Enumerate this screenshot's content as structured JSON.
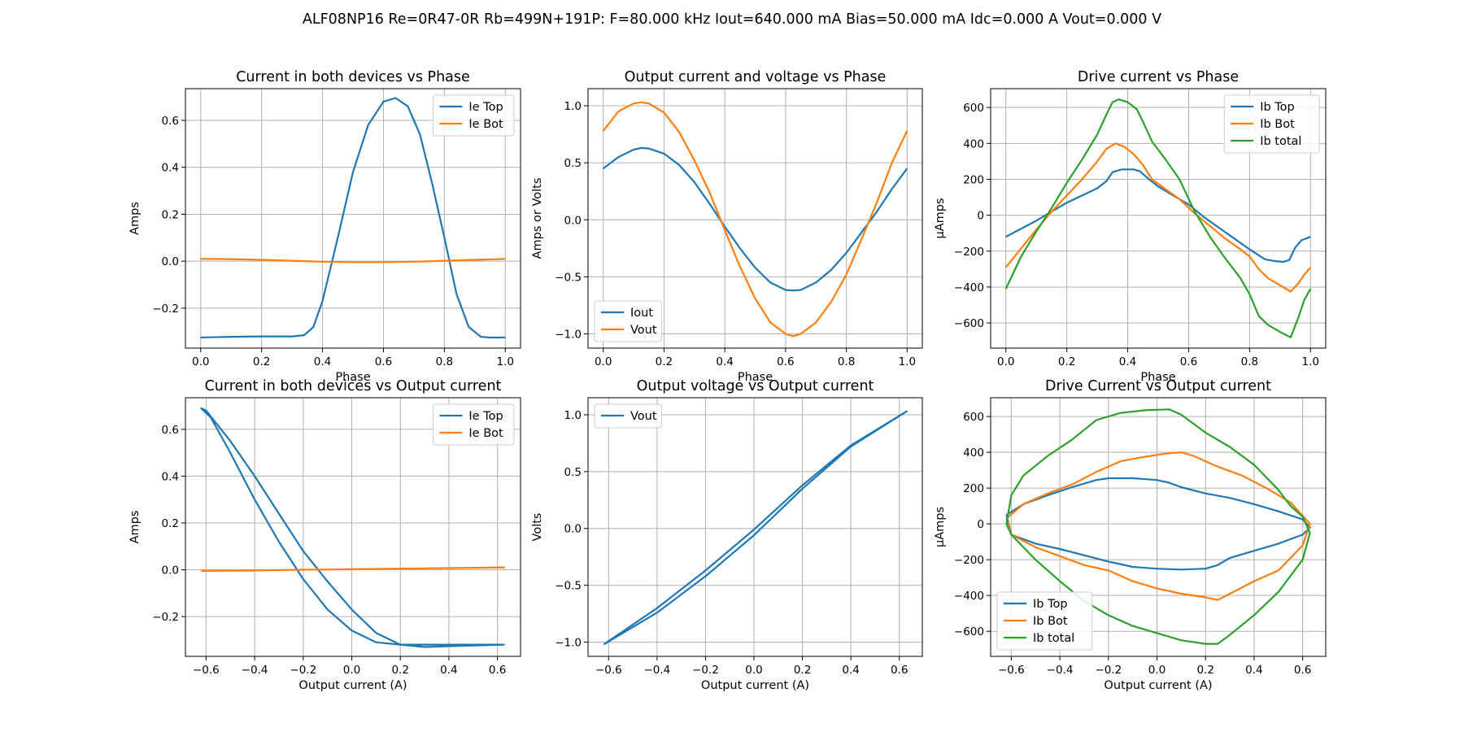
{
  "suptitle": "ALF08NP16 Re=0R47-0R Rb=499N+191P: F=80.000 kHz Iout=640.000 mA Bias=50.000 mA Idc=0.000 A Vout=0.000 V",
  "colors": {
    "c0": "#1f77b4",
    "c1": "#ff7f0e",
    "c2": "#2ca02c",
    "grid": "#b0b0b0"
  },
  "chart_data": [
    {
      "type": "line",
      "title": "Current in both devices vs Phase",
      "xlabel": "Phase",
      "ylabel": "Amps",
      "xlim": [
        -0.05,
        1.05
      ],
      "ylim": [
        -0.37,
        0.735
      ],
      "xticks": [
        0.0,
        0.2,
        0.4,
        0.6,
        0.8,
        1.0
      ],
      "xticklabels": [
        "0.0",
        "0.2",
        "0.4",
        "0.6",
        "0.8",
        "1.0"
      ],
      "yticks": [
        -0.2,
        0.0,
        0.2,
        0.4,
        0.6
      ],
      "yticklabels": [
        "−0.2",
        "0.0",
        "0.2",
        "0.4",
        "0.6"
      ],
      "grid": true,
      "legend": "upper right",
      "series": [
        {
          "name": "Ie Top",
          "color": "#1f77b4",
          "x": [
            0,
            0.1,
            0.2,
            0.3,
            0.34,
            0.37,
            0.4,
            0.45,
            0.5,
            0.55,
            0.6,
            0.64,
            0.68,
            0.72,
            0.76,
            0.8,
            0.84,
            0.88,
            0.92,
            0.95,
            0.97,
            1.0
          ],
          "y": [
            -0.325,
            -0.322,
            -0.32,
            -0.32,
            -0.315,
            -0.28,
            -0.17,
            0.1,
            0.38,
            0.58,
            0.68,
            0.695,
            0.66,
            0.54,
            0.33,
            0.1,
            -0.14,
            -0.28,
            -0.322,
            -0.325,
            -0.325,
            -0.325
          ]
        },
        {
          "name": "Ie Bot",
          "color": "#ff7f0e",
          "x": [
            0,
            0.1,
            0.2,
            0.3,
            0.4,
            0.5,
            0.6,
            0.7,
            0.8,
            0.9,
            1.0
          ],
          "y": [
            0.01,
            0.009,
            0.006,
            0.002,
            -0.002,
            -0.004,
            -0.004,
            -0.002,
            0.002,
            0.006,
            0.01
          ]
        }
      ]
    },
    {
      "type": "line",
      "title": "Output current and voltage vs Phase",
      "xlabel": "Phase",
      "ylabel": "Amps or Volts",
      "xlim": [
        -0.05,
        1.05
      ],
      "ylim": [
        -1.125,
        1.15
      ],
      "xticks": [
        0.0,
        0.2,
        0.4,
        0.6,
        0.8,
        1.0
      ],
      "xticklabels": [
        "0.0",
        "0.2",
        "0.4",
        "0.6",
        "0.8",
        "1.0"
      ],
      "yticks": [
        -1.0,
        -0.5,
        0.0,
        0.5,
        1.0
      ],
      "yticklabels": [
        "−1.0",
        "−0.5",
        "0.0",
        "0.5",
        "1.0"
      ],
      "grid": true,
      "legend": "lower left",
      "series": [
        {
          "name": "Iout",
          "color": "#1f77b4",
          "x": [
            0,
            0.05,
            0.1,
            0.125,
            0.15,
            0.2,
            0.25,
            0.3,
            0.35,
            0.4,
            0.45,
            0.5,
            0.55,
            0.6,
            0.625,
            0.65,
            0.7,
            0.75,
            0.8,
            0.85,
            0.9,
            0.95,
            1.0
          ],
          "y": [
            0.45,
            0.55,
            0.615,
            0.63,
            0.625,
            0.58,
            0.48,
            0.33,
            0.14,
            -0.06,
            -0.25,
            -0.42,
            -0.55,
            -0.615,
            -0.62,
            -0.615,
            -0.55,
            -0.44,
            -0.29,
            -0.11,
            0.07,
            0.27,
            0.45
          ]
        },
        {
          "name": "Vout",
          "color": "#ff7f0e",
          "x": [
            0,
            0.05,
            0.1,
            0.125,
            0.15,
            0.2,
            0.25,
            0.3,
            0.35,
            0.4,
            0.45,
            0.5,
            0.55,
            0.6,
            0.625,
            0.65,
            0.7,
            0.75,
            0.8,
            0.85,
            0.9,
            0.95,
            1.0
          ],
          "y": [
            0.78,
            0.95,
            1.02,
            1.03,
            1.02,
            0.94,
            0.77,
            0.52,
            0.24,
            -0.09,
            -0.41,
            -0.69,
            -0.9,
            -1.0,
            -1.02,
            -1.0,
            -0.9,
            -0.72,
            -0.48,
            -0.17,
            0.15,
            0.5,
            0.78
          ]
        }
      ]
    },
    {
      "type": "line",
      "title": "Drive current vs Phase",
      "xlabel": "Phase",
      "ylabel": "μAmps",
      "xlim": [
        -0.05,
        1.05
      ],
      "ylim": [
        -740,
        705
      ],
      "xticks": [
        0.0,
        0.2,
        0.4,
        0.6,
        0.8,
        1.0
      ],
      "xticklabels": [
        "0.0",
        "0.2",
        "0.4",
        "0.6",
        "0.8",
        "1.0"
      ],
      "yticks": [
        -600,
        -400,
        -200,
        0,
        200,
        400,
        600
      ],
      "yticklabels": [
        "−600",
        "−400",
        "−200",
        "0",
        "200",
        "400",
        "600"
      ],
      "grid": true,
      "legend": "upper right",
      "series": [
        {
          "name": "Ib Top",
          "color": "#1f77b4",
          "x": [
            0,
            0.1,
            0.15,
            0.2,
            0.25,
            0.3,
            0.33,
            0.35,
            0.38,
            0.42,
            0.44,
            0.47,
            0.5,
            0.55,
            0.6,
            0.65,
            0.7,
            0.75,
            0.8,
            0.85,
            0.88,
            0.91,
            0.93,
            0.95,
            0.97,
            1.0
          ],
          "y": [
            -120,
            -30,
            20,
            70,
            110,
            150,
            190,
            240,
            255,
            255,
            245,
            200,
            160,
            110,
            60,
            -10,
            -70,
            -130,
            -190,
            -245,
            -255,
            -260,
            -250,
            -180,
            -140,
            -120
          ]
        },
        {
          "name": "Ib Bot",
          "color": "#ff7f0e",
          "x": [
            0,
            0.1,
            0.15,
            0.2,
            0.25,
            0.3,
            0.33,
            0.36,
            0.39,
            0.42,
            0.45,
            0.48,
            0.52,
            0.57,
            0.62,
            0.67,
            0.72,
            0.77,
            0.8,
            0.83,
            0.86,
            0.9,
            0.935,
            0.96,
            0.98,
            1.0
          ],
          "y": [
            -290,
            -80,
            20,
            110,
            200,
            300,
            370,
            400,
            380,
            340,
            280,
            200,
            150,
            90,
            10,
            -60,
            -130,
            -190,
            -230,
            -300,
            -350,
            -390,
            -425,
            -380,
            -330,
            -290
          ]
        },
        {
          "name": "Ib total",
          "color": "#2ca02c",
          "x": [
            0,
            0.05,
            0.1,
            0.15,
            0.2,
            0.25,
            0.3,
            0.33,
            0.35,
            0.37,
            0.4,
            0.43,
            0.45,
            0.48,
            0.52,
            0.57,
            0.62,
            0.67,
            0.72,
            0.77,
            0.8,
            0.83,
            0.86,
            0.9,
            0.935,
            0.96,
            0.98,
            1.0
          ],
          "y": [
            -410,
            -230,
            -90,
            40,
            180,
            310,
            450,
            560,
            630,
            645,
            630,
            590,
            520,
            410,
            320,
            200,
            20,
            -120,
            -240,
            -350,
            -440,
            -560,
            -610,
            -650,
            -680,
            -570,
            -470,
            -410
          ]
        }
      ]
    },
    {
      "type": "line",
      "title": "Current in both devices vs Output current",
      "xlabel": "Output current (A)",
      "ylabel": "Amps",
      "xlim": [
        -0.685,
        0.695
      ],
      "ylim": [
        -0.37,
        0.735
      ],
      "xticks": [
        -0.6,
        -0.4,
        -0.2,
        0.0,
        0.2,
        0.4,
        0.6
      ],
      "xticklabels": [
        "−0.6",
        "−0.4",
        "−0.2",
        "0.0",
        "0.2",
        "0.4",
        "0.6"
      ],
      "yticks": [
        -0.2,
        0.0,
        0.2,
        0.4,
        0.6
      ],
      "yticklabels": [
        "−0.2",
        "0.0",
        "0.2",
        "0.4",
        "0.6"
      ],
      "grid": true,
      "legend": "upper right",
      "series": [
        {
          "name": "Ie Top",
          "color": "#1f77b4",
          "x": [
            0.63,
            0.4,
            0.2,
            0.15,
            0.1,
            0.0,
            -0.1,
            -0.2,
            -0.3,
            -0.4,
            -0.5,
            -0.58,
            -0.62,
            -0.6,
            -0.5,
            -0.4,
            -0.3,
            -0.2,
            -0.1,
            0.0,
            0.1,
            0.2,
            0.3,
            0.45,
            0.63
          ],
          "y": [
            -0.32,
            -0.32,
            -0.32,
            -0.315,
            -0.31,
            -0.26,
            -0.17,
            -0.04,
            0.12,
            0.3,
            0.5,
            0.65,
            0.69,
            0.68,
            0.55,
            0.4,
            0.24,
            0.08,
            -0.05,
            -0.17,
            -0.27,
            -0.32,
            -0.33,
            -0.325,
            -0.32
          ]
        },
        {
          "name": "Ie Bot",
          "color": "#ff7f0e",
          "x": [
            -0.62,
            -0.4,
            -0.2,
            0.0,
            0.2,
            0.4,
            0.63
          ],
          "y": [
            -0.005,
            -0.003,
            0.0,
            0.002,
            0.005,
            0.007,
            0.01
          ]
        }
      ]
    },
    {
      "type": "line",
      "title": "Output voltage vs Output current",
      "xlabel": "Output current (A)",
      "ylabel": "Volts",
      "xlim": [
        -0.685,
        0.695
      ],
      "ylim": [
        -1.125,
        1.15
      ],
      "xticks": [
        -0.6,
        -0.4,
        -0.2,
        0.0,
        0.2,
        0.4,
        0.6
      ],
      "xticklabels": [
        "−0.6",
        "−0.4",
        "−0.2",
        "0.0",
        "0.2",
        "0.4",
        "0.6"
      ],
      "yticks": [
        -1.0,
        -0.5,
        0.0,
        0.5,
        1.0
      ],
      "yticklabels": [
        "−1.0",
        "−0.5",
        "0.0",
        "0.5",
        "1.0"
      ],
      "grid": true,
      "legend": "upper left",
      "series": [
        {
          "name": "Vout",
          "color": "#1f77b4",
          "x": [
            -0.62,
            -0.4,
            -0.2,
            0.0,
            0.2,
            0.4,
            0.63,
            0.4,
            0.2,
            0.0,
            -0.2,
            -0.4,
            -0.62
          ],
          "y": [
            -1.02,
            -0.7,
            -0.37,
            -0.01,
            0.38,
            0.73,
            1.03,
            0.72,
            0.35,
            -0.06,
            -0.42,
            -0.74,
            -1.02
          ]
        }
      ]
    },
    {
      "type": "line",
      "title": "Drive Current vs Output current",
      "xlabel": "Output current (A)",
      "ylabel": "μAmps",
      "xlim": [
        -0.685,
        0.695
      ],
      "ylim": [
        -740,
        705
      ],
      "xticks": [
        -0.6,
        -0.4,
        -0.2,
        0.0,
        0.2,
        0.4,
        0.6
      ],
      "xticklabels": [
        "−0.6",
        "−0.4",
        "−0.2",
        "0.0",
        "0.2",
        "0.4",
        "0.6"
      ],
      "yticks": [
        -600,
        -400,
        -200,
        0,
        200,
        400,
        600
      ],
      "yticklabels": [
        "−600",
        "−400",
        "−200",
        "0",
        "200",
        "400",
        "600"
      ],
      "grid": true,
      "legend": "lower left",
      "series": [
        {
          "name": "Ib Top",
          "color": "#1f77b4",
          "x": [
            -0.62,
            -0.55,
            -0.45,
            -0.35,
            -0.25,
            -0.2,
            -0.1,
            0.0,
            0.05,
            0.1,
            0.2,
            0.3,
            0.4,
            0.5,
            0.6,
            0.63,
            0.6,
            0.5,
            0.4,
            0.3,
            0.25,
            0.2,
            0.1,
            0.0,
            -0.1,
            -0.2,
            -0.3,
            -0.4,
            -0.5,
            -0.6,
            -0.62
          ],
          "y": [
            50,
            110,
            160,
            205,
            245,
            255,
            255,
            245,
            230,
            205,
            170,
            145,
            110,
            70,
            25,
            -20,
            -60,
            -110,
            -150,
            -190,
            -230,
            -250,
            -255,
            -250,
            -240,
            -210,
            -175,
            -140,
            -110,
            -60,
            50
          ]
        },
        {
          "name": "Ib Bot",
          "color": "#ff7f0e",
          "x": [
            -0.62,
            -0.55,
            -0.45,
            -0.35,
            -0.25,
            -0.15,
            -0.05,
            0.05,
            0.1,
            0.15,
            0.25,
            0.35,
            0.45,
            0.55,
            0.63,
            0.6,
            0.5,
            0.4,
            0.3,
            0.25,
            0.2,
            0.1,
            0.0,
            -0.1,
            -0.2,
            -0.3,
            -0.4,
            -0.5,
            -0.6,
            -0.62
          ],
          "y": [
            30,
            110,
            170,
            220,
            290,
            350,
            375,
            395,
            400,
            380,
            320,
            270,
            200,
            120,
            0,
            -120,
            -260,
            -320,
            -390,
            -425,
            -410,
            -390,
            -360,
            -320,
            -260,
            -230,
            -180,
            -130,
            -60,
            30
          ]
        },
        {
          "name": "Ib total",
          "color": "#2ca02c",
          "x": [
            -0.62,
            -0.6,
            -0.55,
            -0.45,
            -0.35,
            -0.25,
            -0.15,
            -0.05,
            0.05,
            0.1,
            0.2,
            0.3,
            0.4,
            0.5,
            0.55,
            0.6,
            0.63,
            0.6,
            0.55,
            0.5,
            0.4,
            0.3,
            0.25,
            0.2,
            0.1,
            0.0,
            -0.1,
            -0.2,
            -0.3,
            -0.4,
            -0.5,
            -0.6,
            -0.62
          ],
          "y": [
            0,
            160,
            270,
            380,
            470,
            580,
            620,
            635,
            640,
            610,
            510,
            430,
            330,
            190,
            100,
            40,
            -50,
            -200,
            -290,
            -380,
            -510,
            -620,
            -670,
            -670,
            -650,
            -610,
            -570,
            -510,
            -430,
            -320,
            -200,
            -60,
            0
          ]
        }
      ]
    }
  ]
}
